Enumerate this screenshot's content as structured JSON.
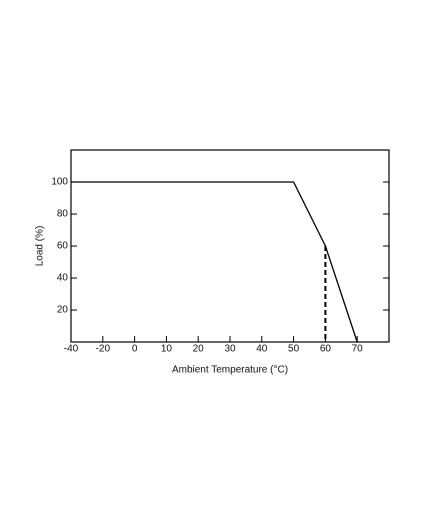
{
  "chart_data": {
    "type": "line",
    "xlabel": "Ambient Temperature (°C)",
    "ylabel": "Load (%)",
    "xlim": [
      -40,
      80
    ],
    "xticks": [
      -40,
      -20,
      0,
      10,
      20,
      30,
      40,
      50,
      60,
      70
    ],
    "ylim": [
      0,
      120
    ],
    "yticks": [
      20,
      40,
      60,
      80,
      100
    ],
    "series": [
      {
        "color": "#000000",
        "dashed": false,
        "x": [
          -40,
          50,
          60,
          70
        ],
        "values": [
          100,
          100,
          60,
          0
        ]
      },
      {
        "color": "#000000",
        "dashed": true,
        "x": [
          60,
          60
        ],
        "values": [
          60,
          0
        ]
      }
    ]
  }
}
